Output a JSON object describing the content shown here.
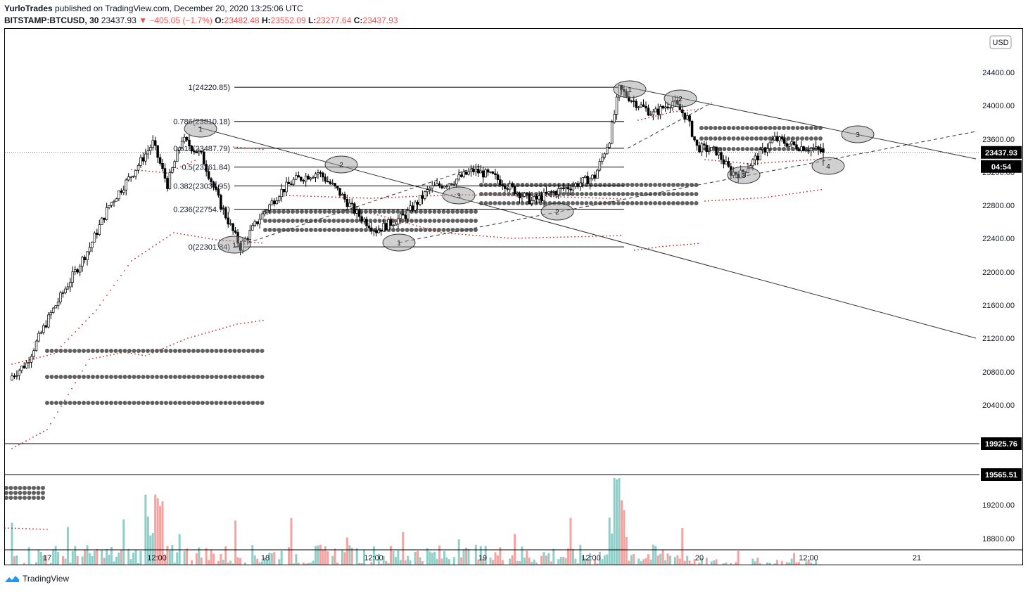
{
  "header": {
    "author": "YurloTrades",
    "published_text": "published on TradingView.com, December 20, 2020 13:25:06 UTC",
    "symbol": "BITSTAMP:BTCUSD, 30",
    "last": "23437.93",
    "arrow": "▼",
    "change": "−405.05 (−1.7%)",
    "o_label": "O:",
    "o": "23482.48",
    "h_label": "H:",
    "h": "23552.09",
    "l_label": "L:",
    "l": "23277.64",
    "c_label": "C:",
    "c": "23437.93"
  },
  "footer": {
    "brand": "TradingView"
  },
  "colors": {
    "up": "#26a69a",
    "down": "#ef5350",
    "vol_up": "#8ecfc9",
    "vol_down": "#f4a3a1",
    "sar": "#c62828",
    "zone": "#616161"
  },
  "chart_data": {
    "type": "candlestick",
    "symbol": "BITSTAMP:BTCUSD",
    "interval": "30",
    "currency": "USD",
    "y_range": [
      18500,
      24800
    ],
    "y_ticks": [
      "24400.00",
      "24000.00",
      "23600.00",
      "23200.00",
      "22800.00",
      "22400.00",
      "22000.00",
      "21600.00",
      "21200.00",
      "20800.00",
      "20400.00",
      "19200.00",
      "18800.00"
    ],
    "x_labels": [
      "17",
      "12:00",
      "18",
      "12:00",
      "19",
      "12:00",
      "20",
      "12:00",
      "21"
    ],
    "price_tags": [
      {
        "value": "23437.93",
        "style": "current"
      },
      {
        "value": "04:54",
        "style": "countdown"
      },
      {
        "value": "19925.76",
        "style": "line"
      },
      {
        "value": "19565.51",
        "style": "line"
      }
    ],
    "fib_levels": [
      {
        "label": "1(24220.85)",
        "price": 24220.85
      },
      {
        "label": "0.786(23810.18)",
        "price": 23810.18
      },
      {
        "label": "0.618(23487.79)",
        "price": 23487.79
      },
      {
        "label": "0.5(23261.84)",
        "price": 23261.84
      },
      {
        "label": "0.382(23034.95)",
        "price": 23034.95
      },
      {
        "label": "0.236(22754.77)",
        "price": 22754.77
      },
      {
        "label": "0(22301.84)",
        "price": 22301.84
      }
    ],
    "wave_labels": [
      "1",
      "2",
      "3",
      "1",
      "2",
      "3",
      "1",
      "2",
      "3",
      "4"
    ],
    "series": [
      {
        "name": "BTCUSD",
        "values": "candles: 30-minute OHLC, Dec 17–20 2020, 20750 → 24220 → 23437.93"
      },
      {
        "name": "Volume",
        "values": "relative volume bars"
      }
    ]
  }
}
